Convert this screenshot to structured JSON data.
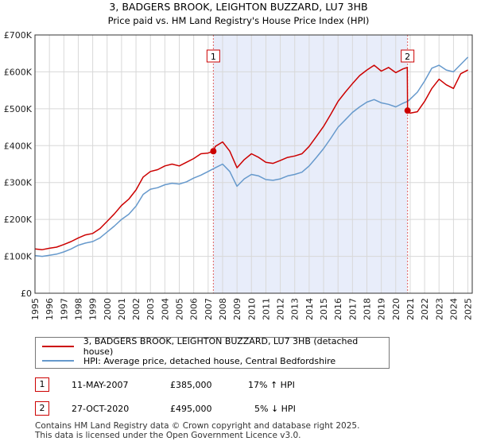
{
  "chart_data": {
    "type": "line",
    "title": "3, BADGERS BROOK, LEIGHTON BUZZARD, LU7 3HB",
    "subtitle": "Price paid vs. HM Land Registry's House Price Index (HPI)",
    "xlim": [
      1995,
      2025.3
    ],
    "ylim": [
      0,
      700000
    ],
    "y_ticks": [
      0,
      100000,
      200000,
      300000,
      400000,
      500000,
      600000,
      700000
    ],
    "y_tick_labels": [
      "£0",
      "£100K",
      "£200K",
      "£300K",
      "£400K",
      "£500K",
      "£600K",
      "£700K"
    ],
    "x_ticks": [
      1995,
      1996,
      1997,
      1998,
      1999,
      2000,
      2001,
      2002,
      2003,
      2004,
      2005,
      2006,
      2007,
      2008,
      2009,
      2010,
      2011,
      2012,
      2013,
      2014,
      2015,
      2016,
      2017,
      2018,
      2019,
      2020,
      2021,
      2022,
      2023,
      2024,
      2025
    ],
    "x_tick_labels": [
      "1995",
      "1996",
      "1997",
      "1998",
      "1999",
      "2000",
      "2001",
      "2002",
      "2003",
      "2004",
      "2005",
      "2006",
      "2007",
      "2008",
      "2009",
      "2010",
      "2011",
      "2012",
      "2013",
      "2014",
      "2015",
      "2016",
      "2017",
      "2018",
      "2019",
      "2020",
      "2021",
      "2022",
      "2023",
      "2024",
      "2025"
    ],
    "grid": true,
    "shaded_region": [
      2007.36,
      2020.82
    ],
    "series": [
      {
        "name": "3, BADGERS BROOK, LEIGHTON BUZZARD, LU7 3HB (detached house)",
        "color": "#cc0000",
        "x": [
          1995.0,
          1995.5,
          1996.0,
          1996.5,
          1997.0,
          1997.5,
          1998.0,
          1998.5,
          1999.0,
          1999.5,
          2000.0,
          2000.5,
          2001.0,
          2001.5,
          2002.0,
          2002.5,
          2003.0,
          2003.5,
          2004.0,
          2004.5,
          2005.0,
          2005.5,
          2006.0,
          2006.5,
          2007.0,
          2007.36,
          2007.5,
          2008.0,
          2008.5,
          2009.0,
          2009.5,
          2010.0,
          2010.5,
          2011.0,
          2011.5,
          2012.0,
          2012.5,
          2013.0,
          2013.5,
          2014.0,
          2014.5,
          2015.0,
          2015.5,
          2016.0,
          2016.5,
          2017.0,
          2017.5,
          2018.0,
          2018.5,
          2019.0,
          2019.5,
          2020.0,
          2020.5,
          2020.8,
          2020.82,
          2021.0,
          2021.5,
          2022.0,
          2022.5,
          2023.0,
          2023.5,
          2024.0,
          2024.5,
          2025.0
        ],
        "values": [
          120000,
          118000,
          122000,
          125000,
          132000,
          140000,
          150000,
          158000,
          162000,
          175000,
          195000,
          215000,
          238000,
          255000,
          280000,
          315000,
          330000,
          335000,
          345000,
          350000,
          345000,
          355000,
          365000,
          378000,
          380000,
          385000,
          398000,
          410000,
          385000,
          340000,
          362000,
          378000,
          368000,
          355000,
          352000,
          360000,
          368000,
          372000,
          378000,
          398000,
          425000,
          452000,
          485000,
          520000,
          545000,
          568000,
          590000,
          605000,
          618000,
          602000,
          612000,
          598000,
          608000,
          612000,
          495000,
          488000,
          492000,
          520000,
          555000,
          580000,
          565000,
          555000,
          595000,
          605000
        ]
      },
      {
        "name": "HPI: Average price, detached house, Central Bedfordshire",
        "color": "#6699cc",
        "x": [
          1995.0,
          1995.5,
          1996.0,
          1996.5,
          1997.0,
          1997.5,
          1998.0,
          1998.5,
          1999.0,
          1999.5,
          2000.0,
          2000.5,
          2001.0,
          2001.5,
          2002.0,
          2002.5,
          2003.0,
          2003.5,
          2004.0,
          2004.5,
          2005.0,
          2005.5,
          2006.0,
          2006.5,
          2007.0,
          2007.5,
          2008.0,
          2008.5,
          2009.0,
          2009.5,
          2010.0,
          2010.5,
          2011.0,
          2011.5,
          2012.0,
          2012.5,
          2013.0,
          2013.5,
          2014.0,
          2014.5,
          2015.0,
          2015.5,
          2016.0,
          2016.5,
          2017.0,
          2017.5,
          2018.0,
          2018.5,
          2019.0,
          2019.5,
          2020.0,
          2020.5,
          2020.82,
          2021.0,
          2021.5,
          2022.0,
          2022.5,
          2023.0,
          2023.5,
          2024.0,
          2024.5,
          2025.0
        ],
        "values": [
          102000,
          100000,
          103000,
          106000,
          112000,
          120000,
          130000,
          136000,
          140000,
          150000,
          166000,
          182000,
          200000,
          214000,
          236000,
          268000,
          282000,
          286000,
          294000,
          298000,
          296000,
          302000,
          312000,
          320000,
          330000,
          340000,
          350000,
          330000,
          290000,
          310000,
          322000,
          318000,
          308000,
          306000,
          310000,
          318000,
          322000,
          328000,
          345000,
          368000,
          392000,
          420000,
          450000,
          470000,
          490000,
          505000,
          518000,
          525000,
          516000,
          512000,
          505000,
          515000,
          520000,
          526000,
          545000,
          575000,
          610000,
          618000,
          605000,
          600000,
          620000,
          640000
        ]
      }
    ],
    "markers": [
      {
        "label": "1",
        "x": 2007.36,
        "y": 385000
      },
      {
        "label": "2",
        "x": 2020.82,
        "y": 495000
      }
    ]
  },
  "legend": {
    "property_label": "3, BADGERS BROOK, LEIGHTON BUZZARD, LU7 3HB (detached house)",
    "hpi_label": "HPI: Average price, detached house, Central Bedfordshire",
    "property_color": "#cc0000",
    "hpi_color": "#6699cc"
  },
  "sales": [
    {
      "badge": "1",
      "date": "11-MAY-2007",
      "price": "£385,000",
      "hpi_change": "17% ↑ HPI"
    },
    {
      "badge": "2",
      "date": "27-OCT-2020",
      "price": "£495,000",
      "hpi_change": "5% ↓ HPI"
    }
  ],
  "footer": {
    "line1": "Contains HM Land Registry data © Crown copyright and database right 2025.",
    "line2": "This data is licensed under the Open Government Licence v3.0."
  }
}
